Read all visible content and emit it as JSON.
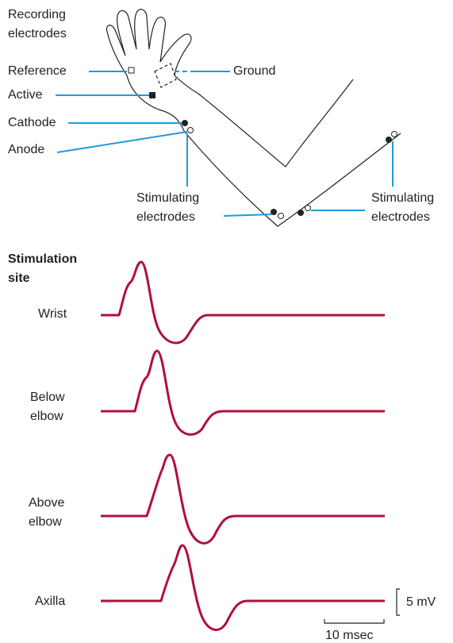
{
  "arm_diagram": {
    "recording_electrodes": [
      "Recording",
      "electrodes"
    ],
    "reference": "Reference",
    "ground": "Ground",
    "active": "Active",
    "cathode": "Cathode",
    "anode": "Anode",
    "stimulating_left": [
      "Stimulating",
      "electrodes"
    ],
    "stimulating_right": [
      "Stimulating",
      "electrodes"
    ]
  },
  "traces": {
    "heading": [
      "Stimulation",
      "site"
    ],
    "sites": [
      [
        "Wrist"
      ],
      [
        "Below",
        "elbow"
      ],
      [
        "Above",
        "elbow"
      ],
      [
        "Axilla"
      ]
    ],
    "amplitude_scale": "5 mV",
    "time_scale": "10 msec"
  }
}
